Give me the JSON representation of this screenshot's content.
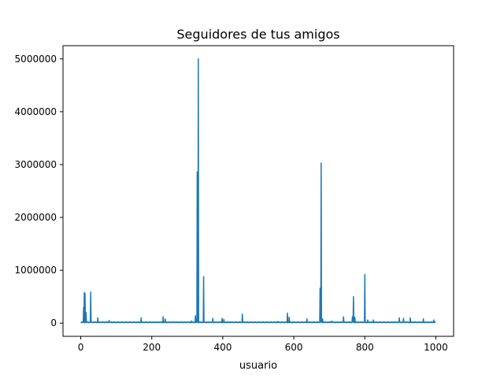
{
  "chart_data": {
    "type": "line",
    "title": "Seguidores de tus amigos",
    "xlabel": "usuario",
    "ylabel": "",
    "xlim": [
      -50,
      1050
    ],
    "ylim": [
      -250000,
      5250000
    ],
    "x_ticks": [
      0,
      200,
      400,
      600,
      800,
      1000
    ],
    "x_tick_labels": [
      "0",
      "200",
      "400",
      "600",
      "800",
      "1000"
    ],
    "y_ticks": [
      0,
      1000000,
      2000000,
      3000000,
      4000000,
      5000000
    ],
    "y_tick_labels": [
      "0",
      "1000000",
      "2000000",
      "3000000",
      "4000000",
      "5000000"
    ],
    "grid": false,
    "legend": "none",
    "series": [
      {
        "color": "#1f77b4",
        "spikes": [
          [
            8,
            300000
          ],
          [
            10,
            580000
          ],
          [
            12,
            560000
          ],
          [
            15,
            200000
          ],
          [
            28,
            590000
          ],
          [
            48,
            100000
          ],
          [
            80,
            50000
          ],
          [
            170,
            100000
          ],
          [
            232,
            120000
          ],
          [
            238,
            80000
          ],
          [
            312,
            40000
          ],
          [
            323,
            140000
          ],
          [
            328,
            2860000
          ],
          [
            331,
            5000000
          ],
          [
            346,
            880000
          ],
          [
            372,
            90000
          ],
          [
            398,
            90000
          ],
          [
            403,
            70000
          ],
          [
            455,
            170000
          ],
          [
            555,
            30000
          ],
          [
            582,
            190000
          ],
          [
            587,
            110000
          ],
          [
            637,
            80000
          ],
          [
            674,
            660000
          ],
          [
            677,
            3030000
          ],
          [
            681,
            80000
          ],
          [
            707,
            40000
          ],
          [
            740,
            120000
          ],
          [
            765,
            120000
          ],
          [
            768,
            500000
          ],
          [
            772,
            110000
          ],
          [
            800,
            920000
          ],
          [
            808,
            60000
          ],
          [
            824,
            60000
          ],
          [
            897,
            100000
          ],
          [
            909,
            90000
          ],
          [
            928,
            100000
          ],
          [
            965,
            80000
          ],
          [
            994,
            60000
          ]
        ],
        "baseline": 8000,
        "n_points": 1000
      }
    ]
  }
}
